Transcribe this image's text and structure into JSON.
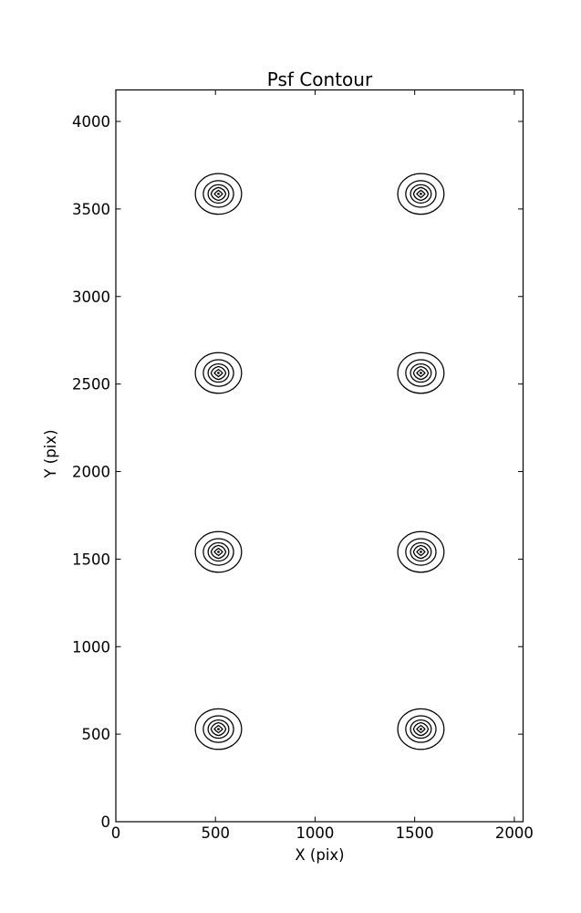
{
  "figure": {
    "background": "#ffffff",
    "line_color": "#000000"
  },
  "chart_data": {
    "type": "contour",
    "title": "Psf Contour",
    "xlabel": "X (pix)",
    "ylabel": "Y (pix)",
    "xlim": [
      0,
      2044
    ],
    "ylim": [
      0,
      4180
    ],
    "xticks": [
      0,
      500,
      1000,
      1500,
      2000
    ],
    "yticks": [
      0,
      500,
      1000,
      1500,
      2000,
      2500,
      3000,
      3500,
      4000
    ],
    "grid": false,
    "legend": null,
    "psf_centers": [
      {
        "x": 515,
        "y": 3586
      },
      {
        "x": 1531,
        "y": 3586
      },
      {
        "x": 515,
        "y": 2563
      },
      {
        "x": 1531,
        "y": 2563
      },
      {
        "x": 515,
        "y": 1541
      },
      {
        "x": 1531,
        "y": 1541
      },
      {
        "x": 515,
        "y": 529
      },
      {
        "x": 1531,
        "y": 529
      }
    ],
    "contour_ring_radii": [
      116,
      76,
      52,
      37,
      20.5,
      6.5
    ]
  }
}
